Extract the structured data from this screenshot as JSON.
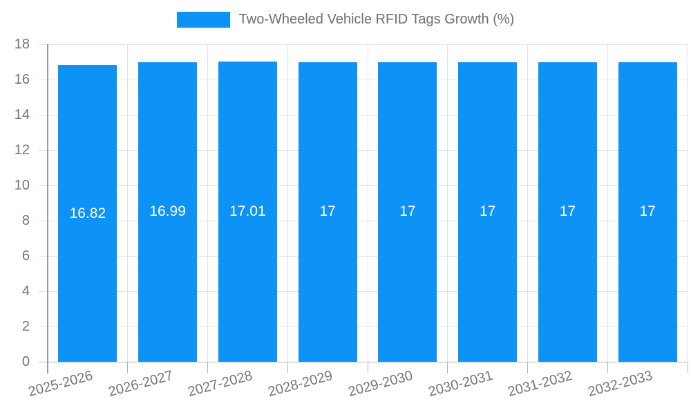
{
  "chart_data": {
    "type": "bar",
    "title": "Two-Wheeled Vehicle RFID Tags Growth (%)",
    "legend_position": "top",
    "xlabel": "",
    "ylabel": "",
    "categories": [
      "2025-2026",
      "2026-2027",
      "2027-2028",
      "2028-2029",
      "2029-2030",
      "2030-2031",
      "2031-2032",
      "2032-2033"
    ],
    "values": [
      16.82,
      16.99,
      17.01,
      17,
      17,
      17,
      17,
      17
    ],
    "bar_labels": [
      "16.82",
      "16.99",
      "17.01",
      "17",
      "17",
      "17",
      "17",
      "17"
    ],
    "ylim": [
      0,
      18
    ],
    "yticks": [
      0,
      2,
      4,
      6,
      8,
      10,
      12,
      14,
      16,
      18
    ],
    "grid": true,
    "colors": {
      "bar": "#0d92f6",
      "grid": "#e2e2e2",
      "baseline": "#b9b9b9",
      "axis": "#9b9b9b",
      "xtick": "#b3b3b3",
      "tick_label": "#757575",
      "legend_text": "#6e6e6e",
      "bar_label": "#ffffff"
    }
  }
}
